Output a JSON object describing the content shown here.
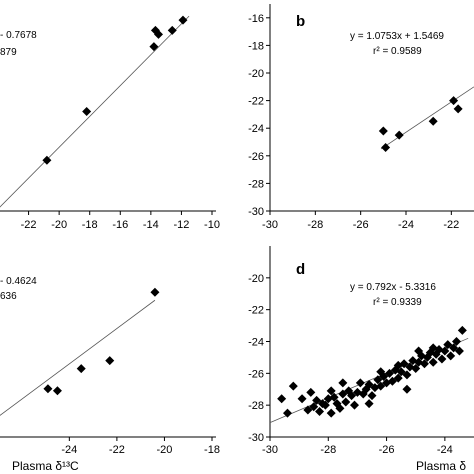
{
  "chart_data": [
    {
      "type": "scatter",
      "panel_label": "",
      "equation": "- 0.7678",
      "r2": "879",
      "xlim": [
        -24,
        -10
      ],
      "ylim": [
        -26,
        -16
      ],
      "xticks": [
        "-22",
        "-20",
        "-18",
        "-16",
        "-14",
        "-12",
        "-10"
      ],
      "yticks": [],
      "xlabel": "",
      "points": [
        {
          "x": -20.8,
          "y": -23.5
        },
        {
          "x": -18.2,
          "y": -21.1
        },
        {
          "x": -13.8,
          "y": -17.9
        },
        {
          "x": -13.7,
          "y": -17.1
        },
        {
          "x": -13.5,
          "y": -17.3
        },
        {
          "x": -12.6,
          "y": -17.1
        },
        {
          "x": -11.9,
          "y": -16.6
        }
      ],
      "fit": {
        "x1": -24,
        "y1": -25.9,
        "x2": -11.5,
        "y2": -16.4
      }
    },
    {
      "type": "scatter",
      "panel_label": "b",
      "equation": "y = 1.0753x + 1.5469",
      "r2": "r² = 0.9589",
      "xlim": [
        -30,
        -21
      ],
      "ylim": [
        -30,
        -15
      ],
      "xticks": [
        "-30",
        "-28",
        "-26",
        "-24",
        "-22"
      ],
      "yticks": [
        "-16",
        "-18",
        "-20",
        "-22",
        "-24",
        "-26",
        "-28",
        "-30"
      ],
      "xlabel": "Plasma δ",
      "points": [
        {
          "x": -25.0,
          "y": -24.2
        },
        {
          "x": -24.9,
          "y": -25.4
        },
        {
          "x": -24.3,
          "y": -24.5
        },
        {
          "x": -22.8,
          "y": -23.5
        },
        {
          "x": -21.9,
          "y": -22.0
        },
        {
          "x": -21.7,
          "y": -22.6
        }
      ],
      "fit": {
        "x1": -25.1,
        "y1": -25.5,
        "x2": -21,
        "y2": -21.0
      }
    },
    {
      "type": "scatter",
      "panel_label": "",
      "equation": "- 0.4624",
      "r2": "636",
      "xlim": [
        -27,
        -18
      ],
      "ylim": [
        -27,
        -18
      ],
      "xticks": [
        "-24",
        "-22",
        "-20",
        "-18"
      ],
      "yticks": [],
      "xlabel": "Plasma δ¹³C",
      "points": [
        {
          "x": -24.9,
          "y": -24.6
        },
        {
          "x": -24.5,
          "y": -24.7
        },
        {
          "x": -23.5,
          "y": -23.6
        },
        {
          "x": -22.3,
          "y": -23.2
        },
        {
          "x": -20.4,
          "y": -19.8
        }
      ],
      "fit": {
        "x1": -27,
        "y1": -26.0,
        "x2": -20.4,
        "y2": -20.2
      }
    },
    {
      "type": "scatter",
      "panel_label": "d",
      "equation": "y = 0.792x - 5.3316",
      "r2": "r² = 0.9339",
      "xlim": [
        -30,
        -23
      ],
      "ylim": [
        -30,
        -18
      ],
      "xticks": [
        "-30",
        "-28",
        "-26",
        "-24"
      ],
      "yticks": [
        "-20",
        "-22",
        "-24",
        "-26",
        "-28",
        "-30"
      ],
      "xlabel": "Plasma δ",
      "points": [
        {
          "x": -29.6,
          "y": -27.6
        },
        {
          "x": -29.4,
          "y": -28.5
        },
        {
          "x": -29.2,
          "y": -26.8
        },
        {
          "x": -28.9,
          "y": -27.6
        },
        {
          "x": -28.7,
          "y": -28.3
        },
        {
          "x": -28.5,
          "y": -28.1
        },
        {
          "x": -28.4,
          "y": -27.7
        },
        {
          "x": -28.3,
          "y": -28.4
        },
        {
          "x": -28.2,
          "y": -27.9
        },
        {
          "x": -28.1,
          "y": -28.0
        },
        {
          "x": -28.0,
          "y": -27.6
        },
        {
          "x": -27.9,
          "y": -28.5
        },
        {
          "x": -27.8,
          "y": -27.5
        },
        {
          "x": -27.7,
          "y": -27.9
        },
        {
          "x": -27.6,
          "y": -28.2
        },
        {
          "x": -27.5,
          "y": -27.3
        },
        {
          "x": -27.4,
          "y": -27.8
        },
        {
          "x": -27.3,
          "y": -27.1
        },
        {
          "x": -27.2,
          "y": -27.4
        },
        {
          "x": -27.1,
          "y": -28.0
        },
        {
          "x": -27.0,
          "y": -27.2
        },
        {
          "x": -26.9,
          "y": -26.6
        },
        {
          "x": -26.8,
          "y": -27.3
        },
        {
          "x": -26.7,
          "y": -27.0
        },
        {
          "x": -26.6,
          "y": -26.7
        },
        {
          "x": -26.5,
          "y": -27.4
        },
        {
          "x": -26.4,
          "y": -26.9
        },
        {
          "x": -26.3,
          "y": -26.4
        },
        {
          "x": -26.2,
          "y": -26.8
        },
        {
          "x": -26.1,
          "y": -26.2
        },
        {
          "x": -26.0,
          "y": -26.6
        },
        {
          "x": -25.9,
          "y": -26.0
        },
        {
          "x": -25.8,
          "y": -26.5
        },
        {
          "x": -25.7,
          "y": -25.8
        },
        {
          "x": -25.6,
          "y": -26.3
        },
        {
          "x": -25.5,
          "y": -25.9
        },
        {
          "x": -25.4,
          "y": -25.4
        },
        {
          "x": -25.3,
          "y": -26.1
        },
        {
          "x": -25.2,
          "y": -25.6
        },
        {
          "x": -25.1,
          "y": -25.2
        },
        {
          "x": -25.0,
          "y": -25.7
        },
        {
          "x": -24.9,
          "y": -25.3
        },
        {
          "x": -24.8,
          "y": -24.9
        },
        {
          "x": -24.7,
          "y": -25.4
        },
        {
          "x": -24.6,
          "y": -25.0
        },
        {
          "x": -24.5,
          "y": -24.7
        },
        {
          "x": -24.4,
          "y": -25.3
        },
        {
          "x": -24.3,
          "y": -24.8
        },
        {
          "x": -24.2,
          "y": -24.5
        },
        {
          "x": -24.1,
          "y": -25.1
        },
        {
          "x": -24.0,
          "y": -24.6
        },
        {
          "x": -23.9,
          "y": -24.2
        },
        {
          "x": -23.8,
          "y": -24.9
        },
        {
          "x": -23.7,
          "y": -24.4
        },
        {
          "x": -23.6,
          "y": -24.0
        },
        {
          "x": -23.5,
          "y": -24.6
        },
        {
          "x": -23.4,
          "y": -23.3
        },
        {
          "x": -25.3,
          "y": -27.0
        },
        {
          "x": -26.6,
          "y": -27.9
        },
        {
          "x": -27.5,
          "y": -26.6
        },
        {
          "x": -28.6,
          "y": -27.2
        },
        {
          "x": -24.9,
          "y": -24.6
        },
        {
          "x": -26.2,
          "y": -25.9
        },
        {
          "x": -27.9,
          "y": -27.1
        },
        {
          "x": -25.6,
          "y": -25.5
        },
        {
          "x": -24.4,
          "y": -24.4
        }
      ],
      "fit": {
        "x1": -30,
        "y1": -29.1,
        "x2": -23.2,
        "y2": -23.8
      }
    }
  ]
}
